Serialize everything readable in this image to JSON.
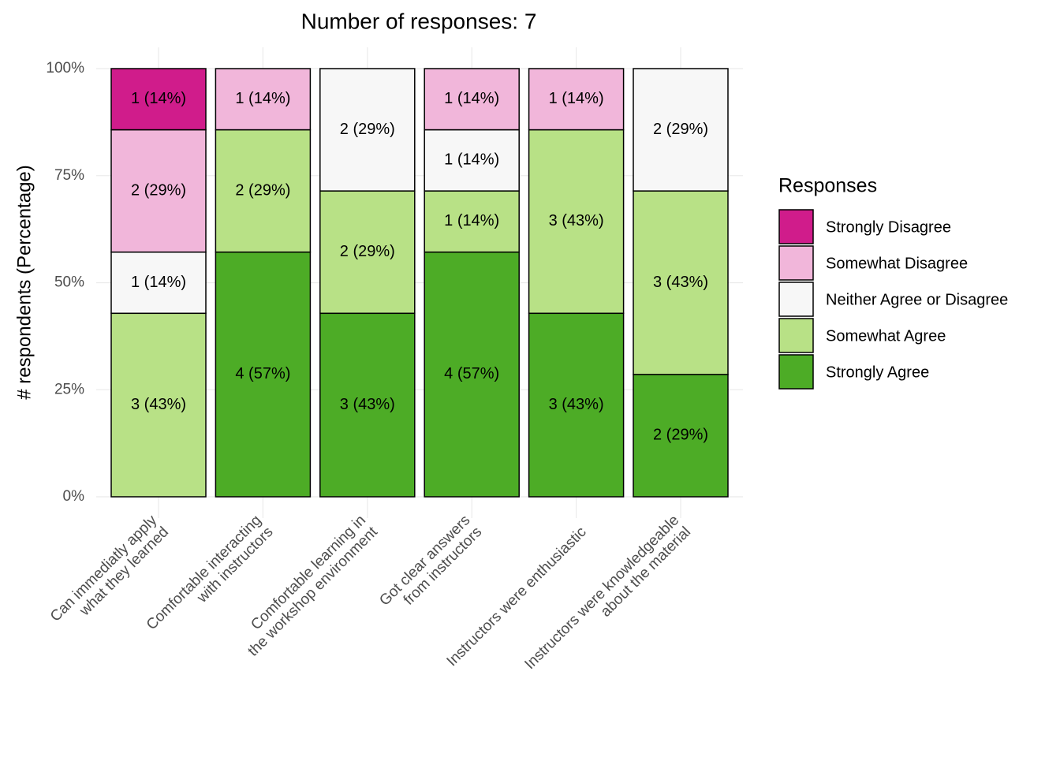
{
  "chart_data": {
    "type": "stacked_bar",
    "title": "Number of responses: 7",
    "y_label": "# respondents (Percentage)",
    "legend_title": "Responses",
    "legend_position": "right",
    "grid": true,
    "categories": [
      [
        "Can immediatly apply",
        "what they learned"
      ],
      [
        "Comfortable interacting",
        "with instructors"
      ],
      [
        "Comfortable learning in",
        "the workshop environment"
      ],
      [
        "Got clear answers",
        "from instructors"
      ],
      [
        "Instructors were enthusiastic"
      ],
      [
        "Instructors were knowledgeable",
        "about the material"
      ]
    ],
    "series": [
      {
        "name": "Strongly Disagree",
        "color": "#d01c8b",
        "values": [
          14.286,
          null,
          null,
          null,
          null,
          null
        ],
        "value_labels": [
          "1 (14%)",
          null,
          null,
          null,
          null,
          null
        ]
      },
      {
        "name": "Somewhat Disagree",
        "color": "#f1b6da",
        "values": [
          28.571,
          14.286,
          null,
          14.286,
          14.286,
          null
        ],
        "value_labels": [
          "2 (29%)",
          "1 (14%)",
          null,
          "1 (14%)",
          "1 (14%)",
          null
        ]
      },
      {
        "name": "Neither Agree or Disagree",
        "color": "#f7f7f7",
        "values": [
          14.286,
          null,
          28.571,
          14.286,
          null,
          28.571
        ],
        "value_labels": [
          "1 (14%)",
          null,
          "2 (29%)",
          "1 (14%)",
          null,
          "2 (29%)"
        ]
      },
      {
        "name": "Somewhat Agree",
        "color": "#b8e186",
        "values": [
          42.857,
          28.571,
          28.571,
          14.286,
          42.857,
          42.857
        ],
        "value_labels": [
          "3 (43%)",
          "2 (29%)",
          "2 (29%)",
          "1 (14%)",
          "3 (43%)",
          "3 (43%)"
        ]
      },
      {
        "name": "Strongly Agree",
        "color": "#4dac26",
        "values": [
          null,
          57.143,
          42.857,
          57.143,
          42.857,
          28.571
        ],
        "value_labels": [
          null,
          "4 (57%)",
          "3 (43%)",
          "4 (57%)",
          "3 (43%)",
          "2 (29%)"
        ]
      }
    ],
    "ylim": [
      0,
      100
    ],
    "yticks": [
      {
        "value": 0,
        "label": "0%"
      },
      {
        "value": 25,
        "label": "25%"
      },
      {
        "value": 50,
        "label": "50%"
      },
      {
        "value": 75,
        "label": "75%"
      },
      {
        "value": 100,
        "label": "100%"
      }
    ]
  }
}
